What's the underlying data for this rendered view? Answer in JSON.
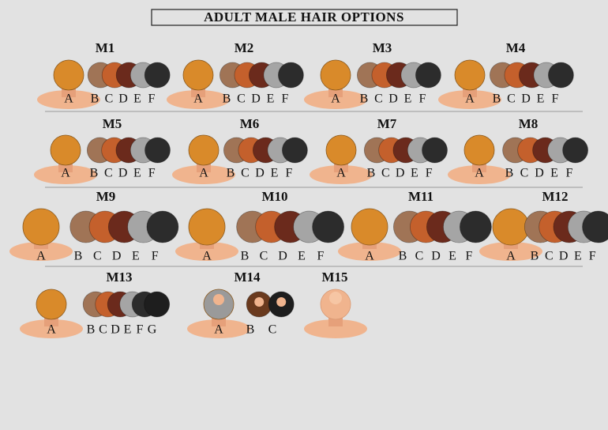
{
  "title": "ADULT MALE HAIR OPTIONS",
  "groups": [
    {
      "label": "M1",
      "options": [
        "A",
        "B",
        "C",
        "D",
        "E",
        "F"
      ]
    },
    {
      "label": "M2",
      "options": [
        "A",
        "B",
        "C",
        "D",
        "E",
        "F"
      ]
    },
    {
      "label": "M3",
      "options": [
        "A",
        "B",
        "C",
        "D",
        "E",
        "F"
      ]
    },
    {
      "label": "M4",
      "options": [
        "A",
        "B",
        "C",
        "D",
        "E",
        "F"
      ]
    },
    {
      "label": "M5",
      "options": [
        "A",
        "B",
        "C",
        "D",
        "E",
        "F"
      ]
    },
    {
      "label": "M6",
      "options": [
        "A",
        "B",
        "C",
        "D",
        "E",
        "F"
      ]
    },
    {
      "label": "M7",
      "options": [
        "A",
        "B",
        "C",
        "D",
        "E",
        "F"
      ]
    },
    {
      "label": "M8",
      "options": [
        "A",
        "B",
        "C",
        "D",
        "E",
        "F"
      ]
    },
    {
      "label": "M9",
      "options": [
        "A",
        "B",
        "C",
        "D",
        "E",
        "F"
      ]
    },
    {
      "label": "M10",
      "options": [
        "A",
        "B",
        "C",
        "D",
        "E",
        "F"
      ]
    },
    {
      "label": "M11",
      "options": [
        "A",
        "B",
        "C",
        "D",
        "E",
        "F"
      ]
    },
    {
      "label": "M12",
      "options": [
        "A",
        "B",
        "C",
        "D",
        "E",
        "F"
      ]
    },
    {
      "label": "M13",
      "options": [
        "A",
        "B",
        "C",
        "D",
        "E",
        "F",
        "G"
      ]
    },
    {
      "label": "M14",
      "options": [
        "A",
        "B",
        "C"
      ]
    },
    {
      "label": "M15",
      "options": []
    }
  ]
}
